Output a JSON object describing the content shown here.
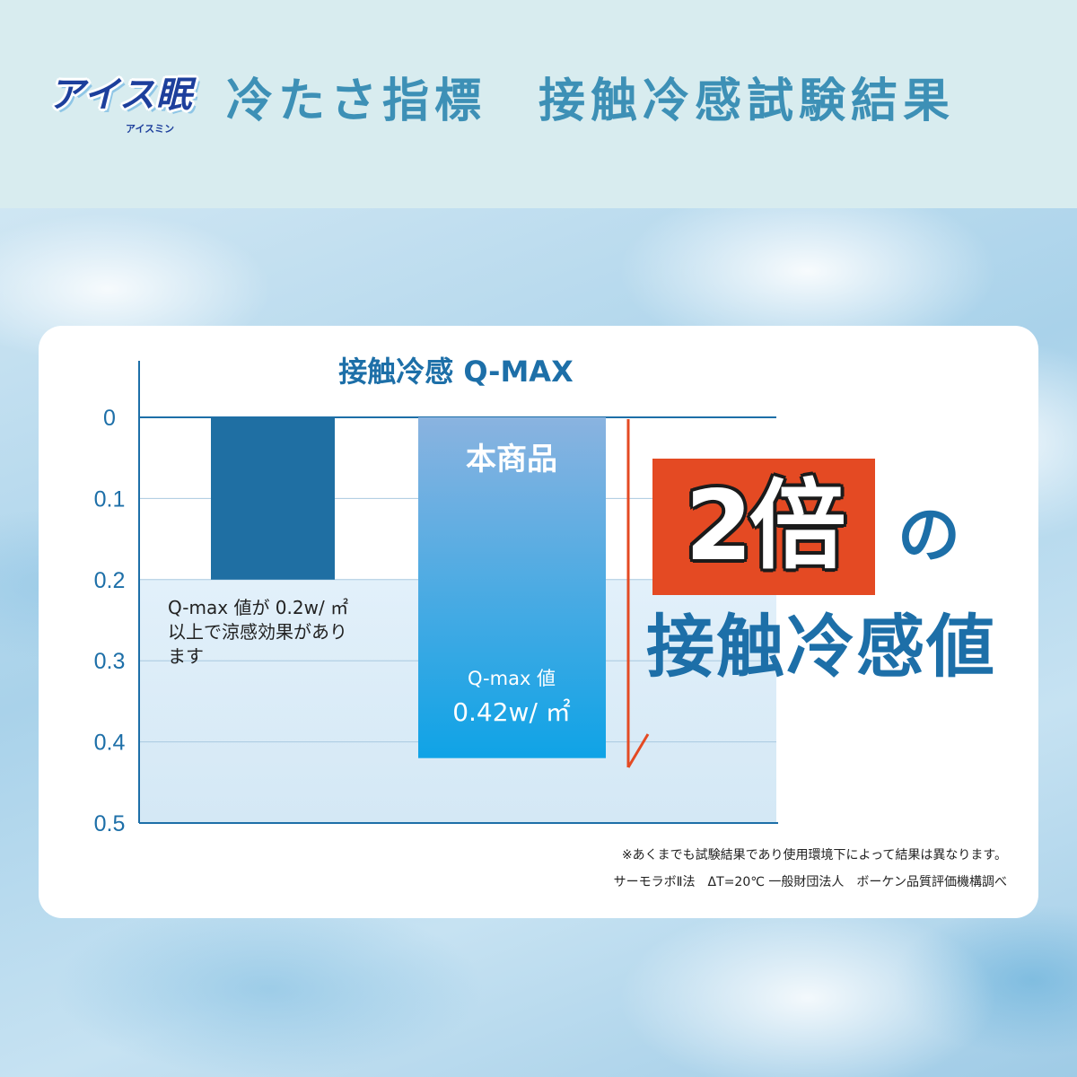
{
  "header": {
    "logo_text": "アイス眠",
    "logo_subtext": "アイスミン",
    "title": "冷たさ指標　接触冷感試験結果"
  },
  "callout": {
    "badge": "2倍",
    "particle": "の",
    "text": "接触冷感値"
  },
  "footnotes": [
    "※あくまでも試験結果であり使用環境下によって結果は異なります。",
    "サーモラボⅡ法　ΔT=20℃ 一般財団法人　ボーケン品質評価機構調べ"
  ],
  "colors": {
    "reference_bar": "#1f6fa3",
    "product_bar_top": "#8ab3e0",
    "product_bar_bottom": "#0fa3e6",
    "accent": "#e44a23",
    "title": "#3d90b6",
    "axis": "#1d6fa8"
  },
  "chart_data": {
    "type": "bar",
    "title": "接触冷感 Q-MAX",
    "orientation": "vertical-downward",
    "xlabel": "",
    "ylabel": "",
    "ylim": [
      0,
      0.5
    ],
    "y_ticks": [
      "0",
      "0.1",
      "0.2",
      "0.3",
      "0.4",
      "0.5"
    ],
    "grid": true,
    "threshold": 0.2,
    "categories": [
      "",
      "本商品"
    ],
    "values": [
      0.2,
      0.42
    ],
    "annotations": {
      "reference_note": [
        "Q-max 値が 0.2w/ ㎡",
        "以上で涼感効果があり",
        "ます"
      ],
      "product_label": "本商品",
      "product_value_label": "Q-max 値",
      "product_value": "0.42w/ ㎡"
    }
  }
}
